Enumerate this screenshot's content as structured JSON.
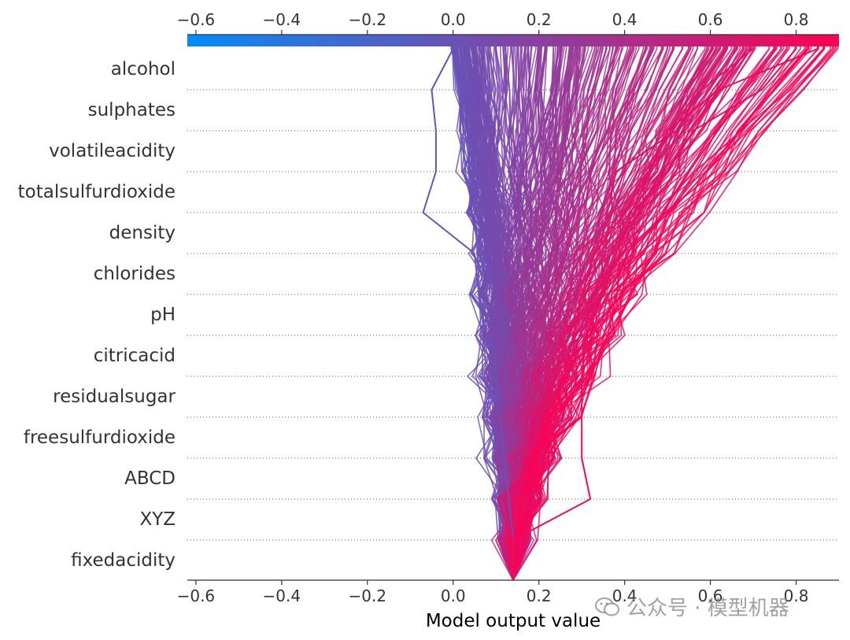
{
  "chart_data": {
    "type": "line",
    "subtype": "shap-decision-plot",
    "xlabel": "Model output value",
    "xlim": [
      -0.62,
      0.9
    ],
    "xticks": [
      -0.6,
      -0.4,
      -0.2,
      0.0,
      0.2,
      0.4,
      0.6,
      0.8
    ],
    "xtick_labels": [
      "−0.6",
      "−0.4",
      "−0.2",
      "0.0",
      "0.2",
      "0.4",
      "0.6",
      "0.8"
    ],
    "base_value": 0.14,
    "colorbar_range": [
      -0.62,
      0.9
    ],
    "colormap": [
      "#008bfb",
      "#ff0052"
    ],
    "features": [
      "alcohol",
      "sulphates",
      "volatileacidity",
      "totalsulfurdioxide",
      "density",
      "chlorides",
      "pH",
      "citricacid",
      "residualsugar",
      "freesulfurdioxide",
      "ABCD",
      "XYZ",
      "fixedacidity"
    ],
    "highlighted_paths": [
      {
        "name": "sample-low",
        "values": [
          0.0,
          -0.05,
          -0.04,
          -0.04,
          -0.07,
          0.05,
          0.06,
          0.09,
          0.1,
          0.11,
          0.12,
          0.13,
          0.14
        ]
      },
      {
        "name": "sample-high-1",
        "values": [
          0.8,
          0.72,
          0.56,
          0.5,
          0.42,
          0.38,
          0.35,
          0.31,
          0.3,
          0.3,
          0.3,
          0.32,
          0.14
        ]
      },
      {
        "name": "sample-high-2",
        "values": [
          0.85,
          0.62,
          0.5,
          0.46,
          0.4,
          0.33,
          0.3,
          0.28,
          0.26,
          0.22,
          0.2,
          0.16,
          0.14
        ]
      },
      {
        "name": "sample-high-3",
        "values": [
          0.7,
          0.58,
          0.52,
          0.38,
          0.36,
          0.34,
          0.31,
          0.27,
          0.24,
          0.2,
          0.18,
          0.15,
          0.14
        ]
      }
    ]
  },
  "watermark": {
    "text": "公众号 · 模型机器"
  }
}
